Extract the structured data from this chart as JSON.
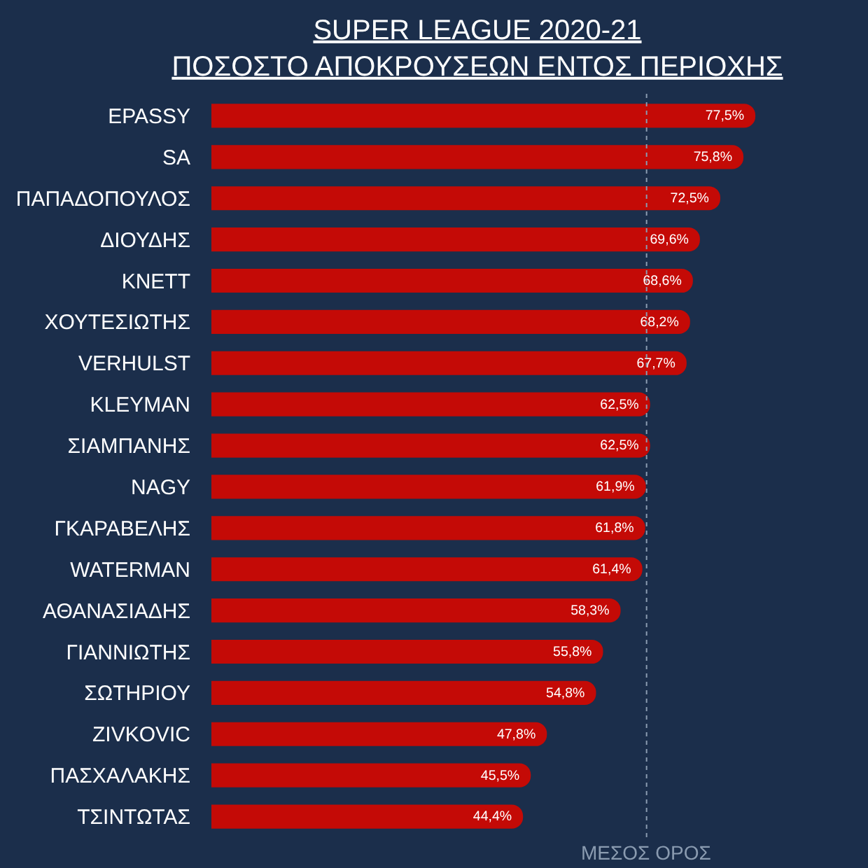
{
  "chart_data": {
    "type": "bar",
    "orientation": "horizontal",
    "title": "SUPER LEAGUE 2020-21",
    "subtitle": "ΠΟΣΟΣΤΟ ΑΠΟΚΡΟΥΣΕΩΝ ΕΝΤΟΣ ΠΕΡΙΟΧΗΣ",
    "categories": [
      "EPASSY",
      "SA",
      "ΠΑΠΑΔΟΠΟΥΛΟΣ",
      "ΔΙΟΥΔΗΣ",
      "KNETT",
      "ΧΟΥΤΕΣΙΩΤΗΣ",
      "VERHULST",
      "KLEYMAN",
      "ΣΙΑΜΠΑΝΗΣ",
      "NAGY",
      "ΓΚΑΡΑΒΕΛΗΣ",
      "WATERMAN",
      "ΑΘΑΝΑΣΙΑΔΗΣ",
      "ΓΙΑΝΝΙΩΤΗΣ",
      "ΣΩΤΗΡΙΟΥ",
      "ZIVKOVIC",
      "ΠΑΣΧΑΛΑΚΗΣ",
      "ΤΣΙΝΤΩΤΑΣ"
    ],
    "values": [
      77.5,
      75.8,
      72.5,
      69.6,
      68.6,
      68.2,
      67.7,
      62.5,
      62.5,
      61.9,
      61.8,
      61.4,
      58.3,
      55.8,
      54.8,
      47.8,
      45.5,
      44.4
    ],
    "value_labels": [
      "77,5%",
      "75,8%",
      "72,5%",
      "69,6%",
      "68,6%",
      "68,2%",
      "67,7%",
      "62,5%",
      "62,5%",
      "61,9%",
      "61,8%",
      "61,4%",
      "58,3%",
      "55,8%",
      "54,8%",
      "47,8%",
      "45,5%",
      "44,4%"
    ],
    "color": "#c40a06",
    "ref_lines": [
      {
        "axis": "x",
        "value": 62,
        "label": "ΜΕΣΟΣ ΟΡΟΣ",
        "color": "#8a9bb0",
        "line_style": "dotted"
      }
    ],
    "tick_labels": "y"
  }
}
